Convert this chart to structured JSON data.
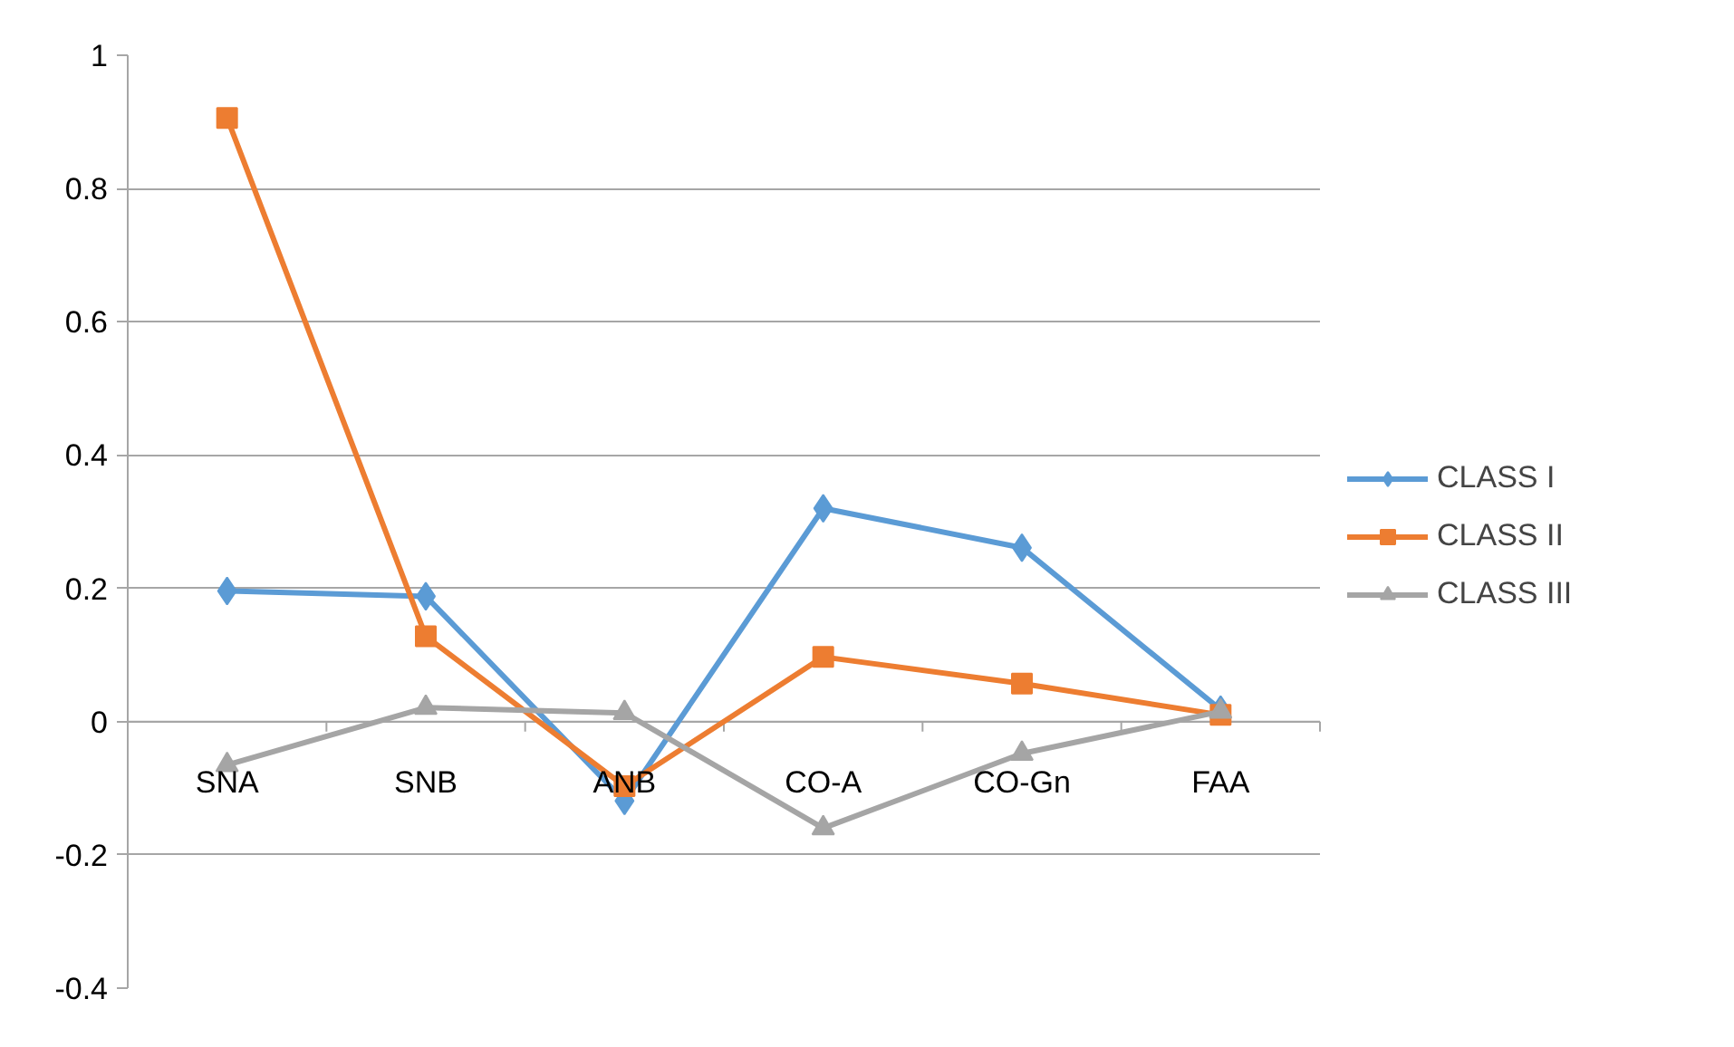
{
  "chart_data": {
    "type": "line",
    "categories": [
      "SNA",
      "SNB",
      "ANB",
      "CO-A",
      "CO-Gn",
      "FAA"
    ],
    "series": [
      {
        "name": "CLASS I",
        "color": "#5b9bd5",
        "marker": "diamond",
        "values": [
          0.196,
          0.188,
          -0.119,
          0.32,
          0.261,
          0.018
        ]
      },
      {
        "name": "CLASS II",
        "color": "#ed7d31",
        "marker": "square",
        "values": [
          0.906,
          0.128,
          -0.097,
          0.097,
          0.057,
          0.01
        ]
      },
      {
        "name": "CLASS III",
        "color": "#a5a5a5",
        "marker": "triangle",
        "values": [
          -0.065,
          0.021,
          0.013,
          -0.16,
          -0.048,
          0.015
        ]
      }
    ],
    "ylim": [
      -0.4,
      1
    ],
    "yticks": [
      {
        "value": -0.4,
        "label": "-0.4"
      },
      {
        "value": -0.2,
        "label": "-0.2"
      },
      0,
      {
        "value": 0.2,
        "label": "0.2"
      },
      {
        "value": 0.4,
        "label": "0.4"
      },
      {
        "value": 0.6,
        "label": "0.6"
      },
      {
        "value": 0.8,
        "label": "0.8"
      },
      1
    ],
    "grid": "y",
    "legend": "right",
    "line_style": "solid"
  }
}
